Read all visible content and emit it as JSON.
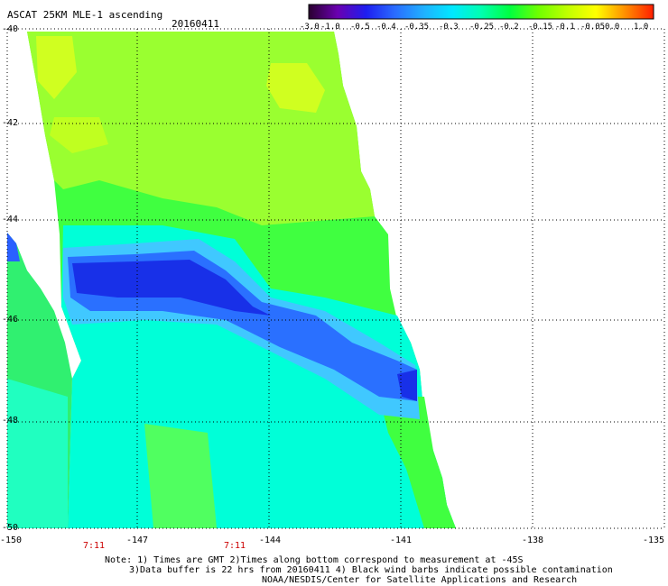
{
  "header": {
    "title": "ASCAT 25KM MLE-1 ascending",
    "date": "20160411"
  },
  "colorbar": {
    "labels": [
      "-3.0",
      "-1.0",
      "-0.5",
      "-0.4",
      "-0.35",
      "-0.3",
      "-0.25",
      "-0.2",
      "-0.15",
      "-0.1",
      "-0.05",
      "0.0",
      "1.0"
    ],
    "colors": [
      "#2a0030",
      "#6a00b0",
      "#1e1ef0",
      "#2a6cff",
      "#20b0ff",
      "#00e8ff",
      "#00ffb0",
      "#00ff40",
      "#70ff00",
      "#c0ff00",
      "#ffff00",
      "#ff9000",
      "#ff1e00"
    ]
  },
  "axes": {
    "lat_labels": [
      "-40",
      "-42",
      "-44",
      "-46",
      "-48",
      "-50"
    ],
    "lon_labels": [
      "-150",
      "-147",
      "-144",
      "-141",
      "-138",
      "-135"
    ]
  },
  "times": [
    "7:11",
    "7:11"
  ],
  "notes": {
    "line1": "Note: 1) Times are GMT 2)Times along bottom correspond to measurement at -45S",
    "line2": "3)Data buffer is 22 hrs from 20160411 4) Black wind barbs indicate possible contamination",
    "line3": "NOAA/NESDIS/Center for Satellite Applications and Research"
  },
  "swath_colors": {
    "yellow_green": "#c8ff20",
    "green": "#40ff40",
    "cyan": "#00ffe0",
    "light_blue": "#40c0ff",
    "blue": "#2050ff",
    "deep_blue": "#1020e0"
  }
}
